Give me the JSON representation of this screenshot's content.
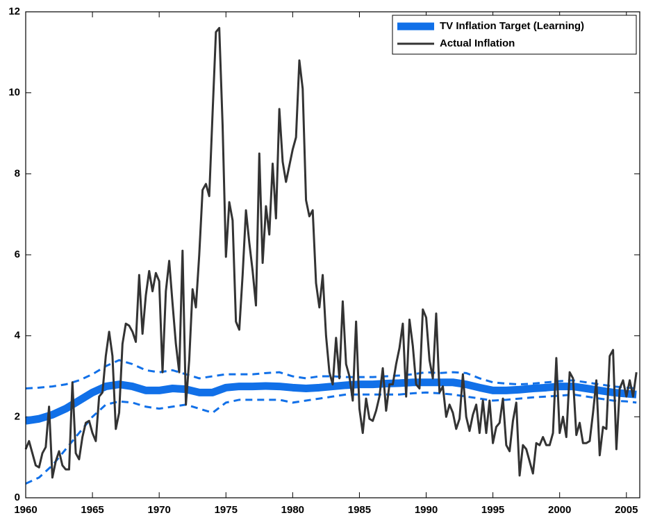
{
  "chart_data": {
    "type": "line",
    "xlim": [
      1960,
      2006
    ],
    "xticks": [
      1960,
      1965,
      1970,
      1975,
      1980,
      1985,
      1990,
      1995,
      2000,
      2005
    ],
    "ylim": [
      0,
      12
    ],
    "yticks": [
      0,
      2,
      4,
      6,
      8,
      10,
      12
    ],
    "grid": false,
    "legend": "upper right",
    "series": [
      {
        "name": "TV Inflation Target (Learning)",
        "color": "#1170e8",
        "x": [
          1960,
          1961,
          1962,
          1963,
          1964,
          1965,
          1966,
          1967,
          1968,
          1969,
          1970,
          1971,
          1972,
          1973,
          1974,
          1975,
          1976,
          1977,
          1978,
          1979,
          1980,
          1981,
          1982,
          1983,
          1984,
          1985,
          1986,
          1987,
          1988,
          1989,
          1990,
          1991,
          1992,
          1993,
          1994,
          1995,
          1996,
          1997,
          1998,
          1999,
          2000,
          2001,
          2002,
          2003,
          2004,
          2005,
          2005.75
        ],
        "values": [
          1.9,
          1.95,
          2.05,
          2.2,
          2.4,
          2.6,
          2.75,
          2.8,
          2.75,
          2.65,
          2.65,
          2.7,
          2.68,
          2.6,
          2.6,
          2.72,
          2.75,
          2.75,
          2.76,
          2.75,
          2.72,
          2.7,
          2.72,
          2.75,
          2.78,
          2.8,
          2.8,
          2.82,
          2.83,
          2.85,
          2.85,
          2.85,
          2.85,
          2.8,
          2.72,
          2.65,
          2.65,
          2.67,
          2.7,
          2.72,
          2.75,
          2.75,
          2.7,
          2.65,
          2.6,
          2.57,
          2.55
        ]
      },
      {
        "name": "Actual Inflation",
        "color": "#333333",
        "x": [
          1960,
          1960.25,
          1960.5,
          1960.75,
          1961,
          1961.25,
          1961.5,
          1961.75,
          1962,
          1962.25,
          1962.5,
          1962.75,
          1963,
          1963.25,
          1963.5,
          1963.75,
          1964,
          1964.25,
          1964.5,
          1964.75,
          1965,
          1965.25,
          1965.5,
          1965.75,
          1966,
          1966.25,
          1966.5,
          1966.75,
          1967,
          1967.25,
          1967.5,
          1967.75,
          1968,
          1968.25,
          1968.5,
          1968.75,
          1969,
          1969.25,
          1969.5,
          1969.75,
          1970,
          1970.25,
          1970.5,
          1970.75,
          1971,
          1971.25,
          1971.5,
          1971.75,
          1972,
          1972.25,
          1972.5,
          1972.75,
          1973,
          1973.25,
          1973.5,
          1973.75,
          1974,
          1974.25,
          1974.5,
          1974.75,
          1975,
          1975.25,
          1975.5,
          1975.75,
          1976,
          1976.25,
          1976.5,
          1976.75,
          1977,
          1977.25,
          1977.5,
          1977.75,
          1978,
          1978.25,
          1978.5,
          1978.75,
          1979,
          1979.25,
          1979.5,
          1979.75,
          1980,
          1980.25,
          1980.5,
          1980.75,
          1981,
          1981.25,
          1981.5,
          1981.75,
          1982,
          1982.25,
          1982.5,
          1982.75,
          1983,
          1983.25,
          1983.5,
          1983.75,
          1984,
          1984.25,
          1984.5,
          1984.75,
          1985,
          1985.25,
          1985.5,
          1985.75,
          1986,
          1986.25,
          1986.5,
          1986.75,
          1987,
          1987.25,
          1987.5,
          1987.75,
          1988,
          1988.25,
          1988.5,
          1988.75,
          1989,
          1989.25,
          1989.5,
          1989.75,
          1990,
          1990.25,
          1990.5,
          1990.75,
          1991,
          1991.25,
          1991.5,
          1991.75,
          1992,
          1992.25,
          1992.5,
          1992.75,
          1993,
          1993.25,
          1993.5,
          1993.75,
          1994,
          1994.25,
          1994.5,
          1994.75,
          1995,
          1995.25,
          1995.5,
          1995.75,
          1996,
          1996.25,
          1996.5,
          1996.75,
          1997,
          1997.25,
          1997.5,
          1997.75,
          1998,
          1998.25,
          1998.5,
          1998.75,
          1999,
          1999.25,
          1999.5,
          1999.75,
          2000,
          2000.25,
          2000.5,
          2000.75,
          2001,
          2001.25,
          2001.5,
          2001.75,
          2002,
          2002.25,
          2002.5,
          2002.75,
          2003,
          2003.25,
          2003.5,
          2003.75,
          2004,
          2004.25,
          2004.5,
          2004.75,
          2005,
          2005.25,
          2005.5,
          2005.75
        ],
        "values": [
          1.2,
          1.4,
          1.1,
          0.8,
          0.75,
          1.1,
          1.25,
          2.25,
          0.5,
          0.9,
          1.15,
          0.8,
          0.7,
          0.7,
          2.85,
          1.1,
          0.95,
          1.5,
          1.85,
          1.9,
          1.6,
          1.4,
          2.5,
          2.6,
          3.5,
          4.1,
          3.5,
          1.7,
          2.1,
          3.8,
          4.3,
          4.25,
          4.1,
          3.85,
          5.5,
          4.05,
          5.0,
          5.6,
          5.1,
          5.55,
          5.35,
          3.1,
          5.1,
          5.85,
          4.8,
          3.8,
          3.1,
          6.1,
          2.3,
          3.4,
          5.15,
          4.7,
          6.0,
          7.6,
          7.75,
          7.45,
          9.5,
          11.5,
          11.6,
          9.2,
          5.95,
          7.3,
          6.85,
          4.35,
          4.15,
          5.5,
          7.1,
          6.3,
          5.6,
          4.75,
          8.5,
          5.8,
          7.2,
          6.5,
          8.25,
          6.9,
          9.6,
          8.3,
          7.8,
          8.2,
          8.6,
          8.9,
          10.8,
          10.1,
          7.35,
          6.95,
          7.1,
          5.3,
          4.7,
          5.5,
          4.0,
          3.1,
          2.8,
          3.95,
          2.95,
          4.85,
          3.3,
          3.0,
          2.4,
          4.35,
          2.2,
          1.6,
          2.45,
          1.95,
          1.9,
          2.15,
          2.5,
          3.2,
          2.15,
          2.8,
          2.8,
          3.3,
          3.7,
          4.3,
          2.5,
          4.4,
          3.75,
          2.8,
          2.7,
          4.65,
          4.45,
          3.4,
          2.95,
          4.55,
          2.6,
          2.75,
          2.0,
          2.3,
          2.1,
          1.7,
          1.95,
          3.05,
          2.0,
          1.65,
          2.05,
          2.3,
          1.6,
          2.4,
          1.6,
          2.4,
          1.35,
          1.75,
          1.85,
          2.45,
          1.3,
          1.15,
          1.9,
          2.35,
          0.55,
          1.3,
          1.2,
          0.9,
          0.6,
          1.35,
          1.3,
          1.5,
          1.3,
          1.3,
          1.6,
          3.45,
          1.6,
          2.0,
          1.5,
          3.1,
          2.95,
          1.55,
          1.85,
          1.35,
          1.35,
          1.4,
          2.1,
          2.9,
          1.05,
          1.75,
          1.7,
          3.5,
          3.65,
          1.2,
          2.7,
          2.9,
          2.5,
          2.9,
          2.5,
          3.1
        ]
      }
    ],
    "band": {
      "color": "#1170e8",
      "upper": [
        2.7,
        2.72,
        2.75,
        2.8,
        2.9,
        3.05,
        3.25,
        3.4,
        3.3,
        3.15,
        3.1,
        3.15,
        3.05,
        2.95,
        3.0,
        3.05,
        3.05,
        3.05,
        3.08,
        3.1,
        3.0,
        2.95,
        3.0,
        3.0,
        2.98,
        2.98,
        2.98,
        3.0,
        3.02,
        3.05,
        3.1,
        3.08,
        3.1,
        3.08,
        2.95,
        2.85,
        2.82,
        2.8,
        2.82,
        2.85,
        2.88,
        2.9,
        2.85,
        2.8,
        2.75,
        2.72,
        2.7
      ],
      "lower": [
        0.35,
        0.5,
        0.8,
        1.2,
        1.6,
        2.0,
        2.3,
        2.38,
        2.35,
        2.25,
        2.2,
        2.25,
        2.3,
        2.2,
        2.1,
        2.35,
        2.42,
        2.42,
        2.42,
        2.42,
        2.35,
        2.4,
        2.45,
        2.5,
        2.55,
        2.55,
        2.55,
        2.55,
        2.55,
        2.58,
        2.6,
        2.58,
        2.55,
        2.5,
        2.45,
        2.4,
        2.42,
        2.45,
        2.48,
        2.5,
        2.52,
        2.55,
        2.5,
        2.45,
        2.4,
        2.38,
        2.35
      ]
    }
  }
}
